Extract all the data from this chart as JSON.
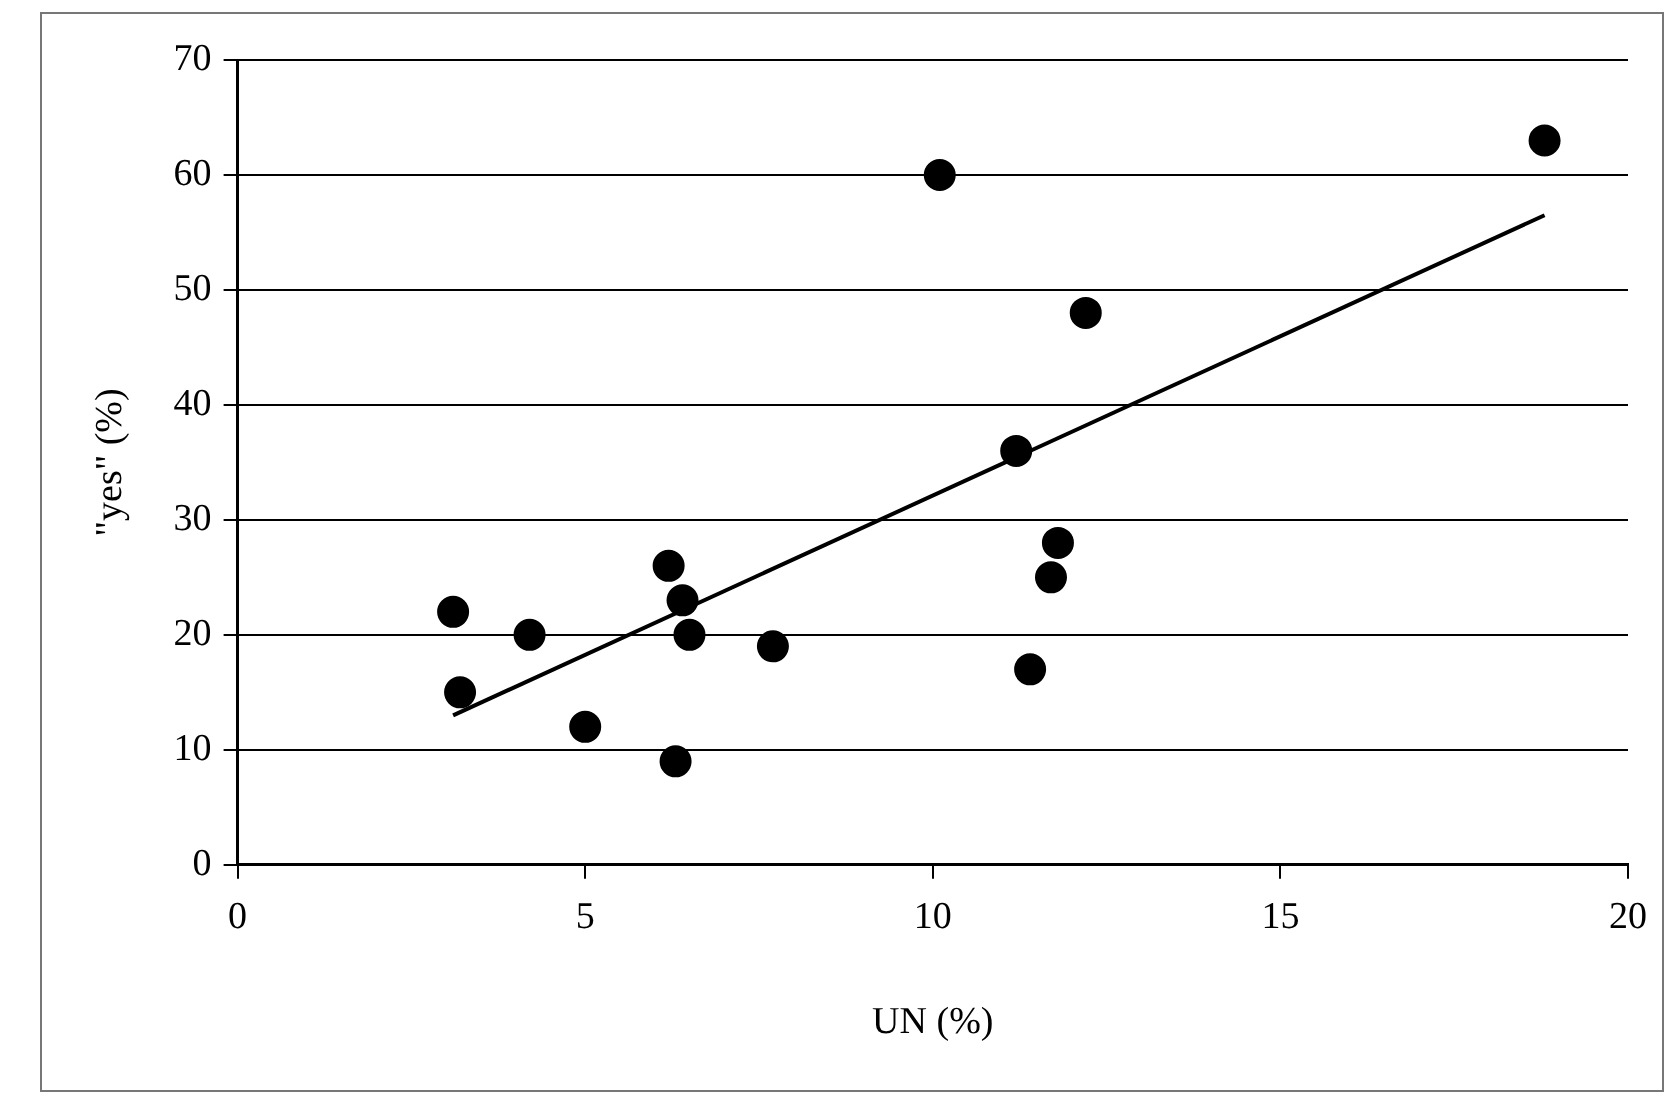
{
  "chart_data": {
    "type": "scatter",
    "xlabel": "UN (%)",
    "ylabel": "\"yes\" (%)",
    "x": [
      3.1,
      3.2,
      4.2,
      5.0,
      6.2,
      6.4,
      6.5,
      6.3,
      7.7,
      10.1,
      11.2,
      11.4,
      11.7,
      11.8,
      12.2,
      18.8
    ],
    "series": [
      {
        "color": "#000000",
        "marker": "circle",
        "values": [
          22,
          15,
          20,
          12,
          26,
          23,
          20,
          9,
          19,
          60,
          36,
          17,
          25,
          28,
          48,
          63
        ]
      },
      {
        "type": "line",
        "color": "#000000",
        "x": [
          3.1,
          18.8
        ],
        "values": [
          13,
          56.5
        ]
      }
    ],
    "xlim": [
      0,
      20
    ],
    "xticks": [
      0,
      5,
      10,
      15,
      20
    ],
    "ylim": [
      0,
      70
    ],
    "yticks": [
      0,
      10,
      20,
      30,
      40,
      50,
      60,
      70
    ],
    "grid": "y",
    "legend": false
  }
}
